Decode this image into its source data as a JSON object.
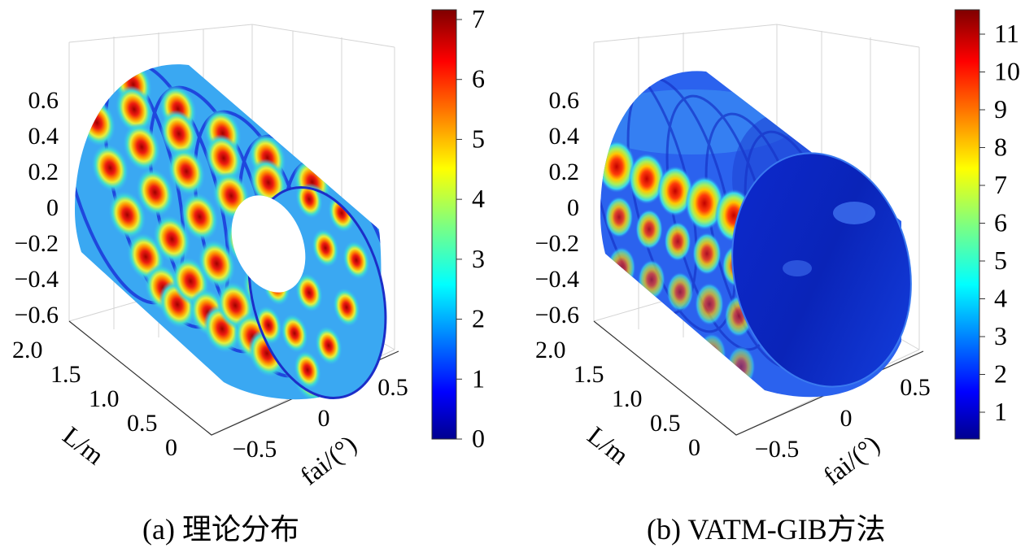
{
  "panels": [
    {
      "caption": "(a) 理论分布",
      "chart_data": {
        "type": "surface3d-cylinder",
        "title": "",
        "color_scale": "jet",
        "color_range": [
          0,
          7
        ],
        "colorbar_ticks": [
          "7",
          "6",
          "5",
          "4",
          "3",
          "2",
          "1",
          "0"
        ],
        "z_ticks": [
          "0.6",
          "0.4",
          "0.2",
          "0",
          "−0.2",
          "−0.4",
          "−0.6"
        ],
        "l_ticks": [
          "2.0",
          "1.5",
          "1.0",
          "0.5",
          "0"
        ],
        "fai_ticks": [
          "−0.5",
          "0",
          "0.5"
        ],
        "xlabel": "fai/(°)",
        "ylabel": "L/m",
        "rings": 6,
        "spots_per_ring": 8,
        "peak_value": 7,
        "background_value": 1.6
      }
    },
    {
      "caption": "(b) VATM-GIB方法",
      "chart_data": {
        "type": "surface3d-cylinder",
        "title": "",
        "color_scale": "jet",
        "color_range": [
          0,
          11.3
        ],
        "colorbar_ticks": [
          "11",
          "10",
          "9",
          "8",
          "7",
          "6",
          "5",
          "4",
          "3",
          "2",
          "1"
        ],
        "z_ticks": [
          "0.6",
          "0.4",
          "0.2",
          "0",
          "−0.2",
          "−0.4",
          "−0.6"
        ],
        "l_ticks": [
          "2.0",
          "1.5",
          "1.0",
          "0.5",
          "0"
        ],
        "fai_ticks": [
          "−0.5",
          "0",
          "0.5"
        ],
        "xlabel": "fai/(°)",
        "ylabel": "L/m",
        "rings": 5,
        "spot_values": [
          9.5,
          8.2,
          7.6,
          10.8,
          9.8
        ],
        "background_value": 1.4
      }
    }
  ]
}
